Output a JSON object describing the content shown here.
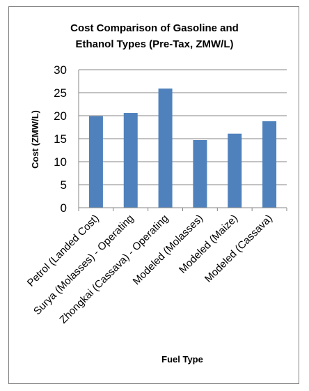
{
  "chart_data": {
    "type": "bar",
    "title_lines": [
      "Cost Comparison  of Gasoline and",
      "Ethanol Types (Pre-Tax, ZMW/L)"
    ],
    "xlabel": "Fuel Type",
    "ylabel": "Cost (ZMW/L)",
    "ylim": [
      0,
      30
    ],
    "yticks": [
      "0",
      "5",
      "10",
      "15",
      "20",
      "25",
      "30"
    ],
    "grid": true,
    "bar_color": "#4f81bd",
    "categories": [
      "Petrol (Landed Cost)",
      "Surya (Molasses) - Operating",
      "Zhongkai (Cassava) - Operating",
      "Modeled (Molasses)",
      "Modeled (Maize)",
      "Modeled (Cassava)"
    ],
    "values": [
      19.9,
      20.6,
      25.9,
      14.7,
      16.1,
      18.8
    ]
  }
}
